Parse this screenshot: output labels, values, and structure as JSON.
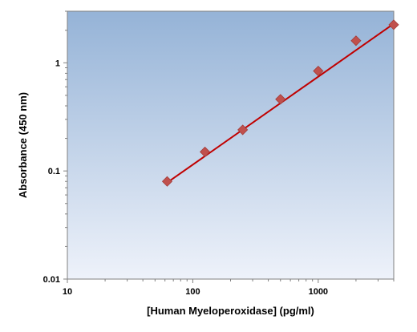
{
  "chart_data": {
    "type": "scatter",
    "title": "",
    "xlabel": "[Human Myeloperoxidase] (pg/ml)",
    "ylabel": "Absorbance (450 nm)",
    "x_scale": "log",
    "y_scale": "log",
    "xlim": [
      10,
      4000
    ],
    "ylim": [
      0.01,
      3
    ],
    "x_ticks": [
      10,
      100,
      1000
    ],
    "x_tick_labels": [
      "10",
      "100",
      "1000"
    ],
    "y_ticks": [
      0.01,
      0.1,
      1
    ],
    "y_tick_labels": [
      "0.01",
      "0.1",
      "1"
    ],
    "grid": false,
    "series": [
      {
        "kind": "points",
        "marker": "diamond",
        "color": "#c0504d",
        "x": [
          62.5,
          125,
          250,
          500,
          1000,
          2000,
          4000
        ],
        "y": [
          0.08,
          0.15,
          0.24,
          0.46,
          0.84,
          1.6,
          2.25
        ]
      },
      {
        "kind": "fit-line",
        "color": "#c00000",
        "x": [
          62.5,
          4000
        ],
        "y": [
          0.078,
          2.3
        ]
      }
    ],
    "colors": {
      "background_top": "#95b3d7",
      "background_bottom": "#eef2fa",
      "marker": "#c0504d",
      "line": "#c00000"
    }
  }
}
